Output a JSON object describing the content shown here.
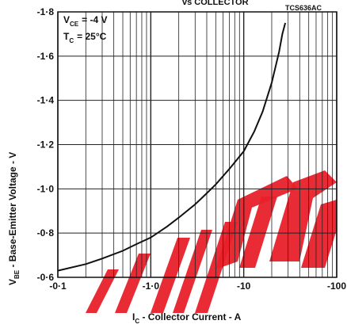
{
  "header": {
    "title_fragment": "vs COLLECTOR",
    "figure_code": "TCS636AC"
  },
  "annotations": {
    "line1_main": "V",
    "line1_sub": "CE",
    "line1_val": "= -4 V",
    "line2_main": "T",
    "line2_sub": "C",
    "line2_val": "= 25°C"
  },
  "axes": {
    "ylabel_main": "V",
    "ylabel_sub": "BE",
    "ylabel_rest": " - Base-Emitter Voltage - V",
    "xlabel_main": "I",
    "xlabel_sub": "C",
    "xlabel_rest": " - Collector Current - A"
  },
  "chart_data": {
    "type": "line",
    "x_scale": "log",
    "xlim": [
      0.1,
      100
    ],
    "ylim": [
      -0.6,
      -1.8
    ],
    "x_ticks": [
      "-0·1",
      "-1·0",
      "-10",
      "-100"
    ],
    "x_tick_values": [
      0.1,
      1,
      10,
      100
    ],
    "y_ticks": [
      "-0·6",
      "-0·8",
      "-1·0",
      "-1·2",
      "-1·4",
      "-1·6",
      "-1·8"
    ],
    "y_tick_values": [
      -0.6,
      -0.8,
      -1.0,
      -1.2,
      -1.4,
      -1.6,
      -1.8
    ],
    "grid": true,
    "series": [
      {
        "points": [
          [
            0.1,
            -0.63
          ],
          [
            0.2,
            -0.66
          ],
          [
            0.3,
            -0.685
          ],
          [
            0.5,
            -0.72
          ],
          [
            0.7,
            -0.75
          ],
          [
            1.0,
            -0.78
          ],
          [
            1.5,
            -0.83
          ],
          [
            2.0,
            -0.87
          ],
          [
            3.0,
            -0.93
          ],
          [
            4.0,
            -0.98
          ],
          [
            5.0,
            -1.02
          ],
          [
            7.0,
            -1.09
          ],
          [
            10.0,
            -1.17
          ],
          [
            13.0,
            -1.26
          ],
          [
            16.0,
            -1.35
          ],
          [
            20.0,
            -1.48
          ],
          [
            24.0,
            -1.62
          ],
          [
            26.0,
            -1.7
          ],
          [
            28.0,
            -1.75
          ]
        ]
      }
    ],
    "colors": {
      "line": "#111111",
      "grid": "#222222",
      "watermark": "#e8202a"
    }
  }
}
